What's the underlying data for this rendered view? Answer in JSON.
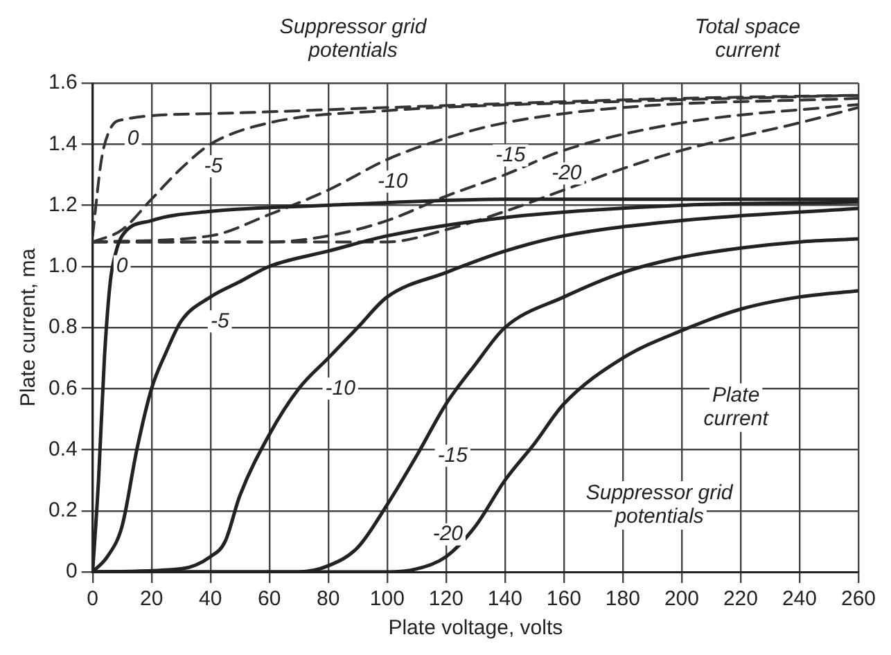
{
  "chart_data": {
    "type": "line",
    "xlabel": "Plate voltage, volts",
    "ylabel": "Plate current, ma",
    "annotations": [
      "Suppressor grid potentials",
      "Total space current",
      "Plate current",
      "Suppressor grid potentials"
    ],
    "xlim": [
      0,
      260
    ],
    "xticks": [
      0,
      20,
      40,
      60,
      80,
      100,
      120,
      140,
      160,
      180,
      200,
      220,
      240,
      260
    ],
    "ylim": [
      0,
      1.6
    ],
    "yticks": [
      0,
      0.2,
      0.4,
      0.6,
      0.8,
      {
        "value": 1,
        "label": "1.0"
      },
      1.2,
      1.4,
      1.6
    ],
    "grid": true,
    "legend": false,
    "marker": "none",
    "series": [
      {
        "name": "0",
        "color": "#222222",
        "line_style": "solid",
        "x": [
          0,
          2,
          4,
          6,
          8,
          10,
          20,
          40,
          80,
          140,
          260
        ],
        "values": [
          0,
          0.3,
          0.7,
          0.95,
          1.05,
          1.1,
          1.15,
          1.18,
          1.2,
          1.22,
          1.22
        ]
      },
      {
        "name": "-5",
        "color": "#222222",
        "line_style": "solid",
        "x": [
          0,
          5,
          10,
          15,
          20,
          25,
          30,
          40,
          50,
          60,
          80,
          100,
          140,
          200,
          260
        ],
        "values": [
          0,
          0.05,
          0.15,
          0.4,
          0.6,
          0.72,
          0.82,
          0.9,
          0.95,
          1.0,
          1.05,
          1.1,
          1.16,
          1.2,
          1.21
        ]
      },
      {
        "name": "-10",
        "color": "#222222",
        "line_style": "solid",
        "x": [
          0,
          30,
          40,
          45,
          50,
          60,
          70,
          80,
          90,
          100,
          120,
          140,
          160,
          200,
          260
        ],
        "values": [
          0,
          0.01,
          0.05,
          0.1,
          0.25,
          0.45,
          0.6,
          0.7,
          0.8,
          0.9,
          0.98,
          1.05,
          1.1,
          1.15,
          1.19
        ]
      },
      {
        "name": "-15",
        "color": "#222222",
        "line_style": "solid",
        "x": [
          0,
          70,
          80,
          90,
          100,
          110,
          120,
          130,
          140,
          160,
          180,
          200,
          220,
          240,
          260
        ],
        "values": [
          0,
          0,
          0.02,
          0.08,
          0.22,
          0.38,
          0.55,
          0.68,
          0.8,
          0.9,
          0.98,
          1.03,
          1.06,
          1.08,
          1.09
        ]
      },
      {
        "name": "-20",
        "color": "#222222",
        "line_style": "solid",
        "x": [
          0,
          100,
          110,
          120,
          130,
          140,
          150,
          160,
          180,
          200,
          220,
          240,
          260
        ],
        "values": [
          0,
          0,
          0.01,
          0.05,
          0.15,
          0.3,
          0.42,
          0.55,
          0.7,
          0.79,
          0.86,
          0.9,
          0.92
        ]
      },
      {
        "name": "0",
        "color": "#333333",
        "line_style": "dashed",
        "x": [
          0,
          3,
          6,
          10,
          40,
          100,
          200,
          260
        ],
        "values": [
          1.1,
          1.35,
          1.45,
          1.48,
          1.5,
          1.52,
          1.55,
          1.56
        ]
      },
      {
        "name": "-5",
        "color": "#333333",
        "line_style": "dashed",
        "x": [
          0,
          10,
          20,
          30,
          40,
          60,
          100,
          180,
          260
        ],
        "values": [
          1.08,
          1.12,
          1.22,
          1.32,
          1.4,
          1.47,
          1.51,
          1.54,
          1.56
        ]
      },
      {
        "name": "-10",
        "color": "#333333",
        "line_style": "dashed",
        "x": [
          0,
          40,
          60,
          80,
          100,
          120,
          140,
          180,
          260
        ],
        "values": [
          1.08,
          1.1,
          1.17,
          1.25,
          1.35,
          1.42,
          1.47,
          1.52,
          1.55
        ]
      },
      {
        "name": "-15",
        "color": "#333333",
        "line_style": "dashed",
        "x": [
          0,
          60,
          80,
          100,
          120,
          140,
          160,
          200,
          260
        ],
        "values": [
          1.08,
          1.08,
          1.1,
          1.15,
          1.23,
          1.3,
          1.38,
          1.47,
          1.53
        ]
      },
      {
        "name": "-20",
        "color": "#333333",
        "line_style": "dashed",
        "x": [
          0,
          100,
          120,
          140,
          160,
          180,
          200,
          240,
          260
        ],
        "values": [
          1.08,
          1.08,
          1.12,
          1.18,
          1.25,
          1.32,
          1.38,
          1.47,
          1.52
        ]
      }
    ]
  }
}
